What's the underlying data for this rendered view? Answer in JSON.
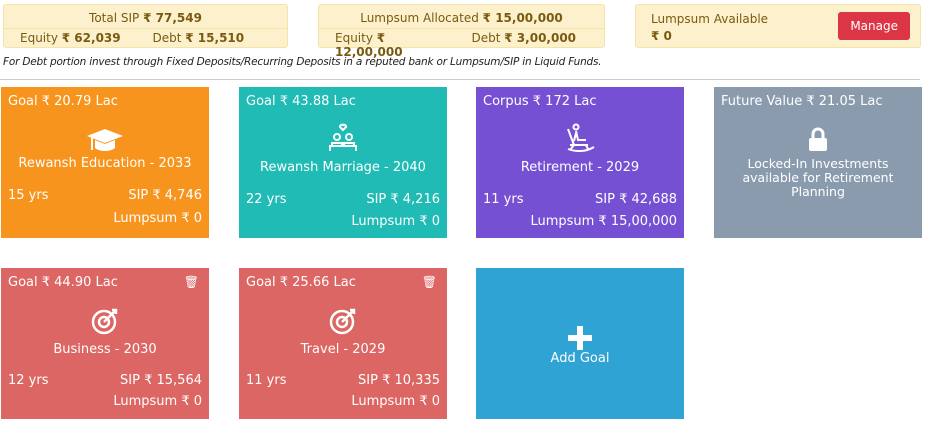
{
  "sip": {
    "title": "Total SIP",
    "total": "₹ 77,549",
    "equity_label": "Equity",
    "equity": "₹ 62,039",
    "debt_label": "Debt",
    "debt": "₹ 15,510"
  },
  "lumpsum": {
    "title": "Lumpsum Allocated",
    "total": "₹ 15,00,000",
    "equity_label": "Equity",
    "equity": "₹ 12,00,000",
    "debt_label": "Debt",
    "debt": "₹ 3,00,000"
  },
  "available": {
    "title": "Lumpsum Available",
    "value": "₹ 0",
    "button": "Manage"
  },
  "note": "For Debt portion invest through Fixed Deposits/Recurring Deposits in a reputed bank or Lumpsum/SIP in Liquid Funds.",
  "cards": [
    {
      "goal": "Goal ₹ 20.79 Lac",
      "name": "Rewansh Education - 2033",
      "yrs": "15 yrs",
      "sip": "SIP ₹ 4,746",
      "lump": "Lumpsum ₹ 0",
      "color": "#f7941d"
    },
    {
      "goal": "Goal ₹ 43.88 Lac",
      "name": "Rewansh Marriage - 2040",
      "yrs": "22 yrs",
      "sip": "SIP ₹ 4,216",
      "lump": "Lumpsum ₹ 0",
      "color": "#1fbbb4"
    },
    {
      "goal": "Corpus ₹ 172 Lac",
      "name": "Retirement - 2029",
      "yrs": "11 yrs",
      "sip": "SIP ₹ 42,688",
      "lump": "Lumpsum ₹ 15,00,000",
      "color": "#7650d2"
    },
    {
      "goal": "Future Value ₹ 21.05 Lac",
      "name": "Locked-In Investments available for Retirement Planning",
      "color": "#8a9bae"
    },
    {
      "goal": "Goal ₹ 44.90 Lac",
      "name": "Business - 2030",
      "yrs": "12 yrs",
      "sip": "SIP ₹ 15,564",
      "lump": "Lumpsum ₹ 0",
      "color": "#dc6663"
    },
    {
      "goal": "Goal ₹ 25.66 Lac",
      "name": "Travel - 2029",
      "yrs": "11 yrs",
      "sip": "SIP ₹ 10,335",
      "lump": "Lumpsum ₹ 0",
      "color": "#dc6663"
    },
    {
      "name": "Add Goal",
      "color": "#2fa3d4"
    }
  ]
}
